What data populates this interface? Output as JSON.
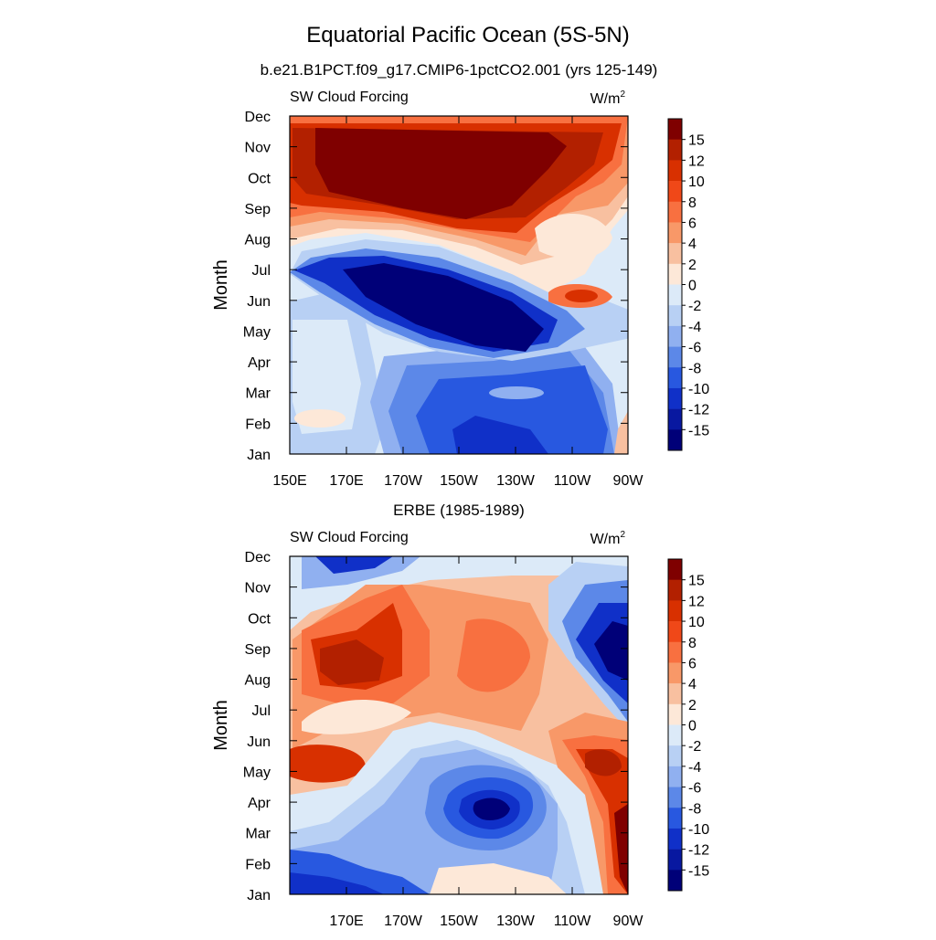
{
  "title": "Equatorial Pacific Ocean (5S-5N)",
  "colorbar": {
    "labels": [
      "15",
      "12",
      "10",
      "8",
      "6",
      "4",
      "2",
      "0",
      "-2",
      "-4",
      "-6",
      "-8",
      "-10",
      "-12",
      "-15"
    ],
    "colors": [
      "#7f0000",
      "#b22000",
      "#d83000",
      "#f04818",
      "#f87040",
      "#f89868",
      "#f8c0a0",
      "#fde8d8",
      "#dceaf8",
      "#b8d0f4",
      "#90b0f0",
      "#5c88e8",
      "#2858e0",
      "#1030c8",
      "#0818a0",
      "#000078"
    ]
  },
  "palette": {
    "dark_red": "#7f0000",
    "red": "#d83000",
    "orange": "#f87040",
    "salmon": "#f89868",
    "peach": "#f8c0a0",
    "cream": "#fde8d8",
    "pale_blue": "#dceaf8",
    "light_blue": "#b8d0f4",
    "mid_blue": "#90b0f0",
    "blue": "#5c88e8",
    "strong_blue": "#2858e0",
    "deep_blue": "#1030c8",
    "navy": "#000078"
  },
  "chart_data": [
    {
      "type": "heatmap",
      "subtitle": "b.e21.B1PCT.f09_g17.CMIP6-1pctCO2.001 (yrs 125-149)",
      "left_label": "SW Cloud Forcing",
      "units_base": "W/m",
      "units_exp": "2",
      "ylabel": "Month",
      "xlim": [
        "150E",
        "90W"
      ],
      "ylim": [
        "Jan",
        "Dec"
      ],
      "months": [
        "Jan",
        "Feb",
        "Mar",
        "Apr",
        "May",
        "Jun",
        "Jul",
        "Aug",
        "Sep",
        "Oct",
        "Nov",
        "Dec"
      ],
      "xticklabels": [
        "150E",
        "170E",
        "170W",
        "150W",
        "130W",
        "110W",
        "90W"
      ],
      "features": [
        {
          "name": "high SW forcing band Sep-Dec",
          "max": 15
        },
        {
          "name": "strong negative band Apr-Jul",
          "min": -15
        }
      ]
    },
    {
      "type": "heatmap",
      "subtitle": "ERBE (1985-1989)",
      "left_label": "SW Cloud Forcing",
      "units_base": "W/m",
      "units_exp": "2",
      "ylabel": "Month",
      "xlim": [
        "150E",
        "90W"
      ],
      "ylim": [
        "Jan",
        "Dec"
      ],
      "months": [
        "Jan",
        "Feb",
        "Mar",
        "Apr",
        "May",
        "Jun",
        "Jul",
        "Aug",
        "Sep",
        "Oct",
        "Nov",
        "Dec"
      ],
      "xticklabels": [
        "170E",
        "170W",
        "150W",
        "130W",
        "110W",
        "90W"
      ],
      "features": [
        {
          "name": "positive region Jun-Nov",
          "max": 12
        },
        {
          "name": "negative region Feb-May central Pacific",
          "min": -15
        }
      ]
    }
  ]
}
